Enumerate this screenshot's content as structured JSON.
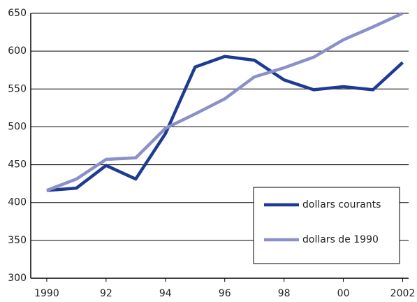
{
  "chart_data": {
    "type": "line",
    "x": [
      1990,
      1991,
      1992,
      1993,
      1994,
      1995,
      1996,
      1997,
      1998,
      1999,
      2000,
      2001,
      2002
    ],
    "series": [
      {
        "name": "dollars courants",
        "color": "#1f3a93",
        "values": [
          416,
          419,
          449,
          431,
          491,
          579,
          593,
          588,
          562,
          549,
          553,
          549,
          585
        ]
      },
      {
        "name": "dollars de 1990",
        "color": "#8c90c9",
        "values": [
          416,
          431,
          457,
          459,
          498,
          517,
          537,
          566,
          578,
          592,
          615,
          632,
          650
        ]
      }
    ],
    "xlim": [
      1989.46,
      2002.2
    ],
    "xticks": [
      1990,
      {
        "value": 1992,
        "label": "92"
      },
      {
        "value": 1994,
        "label": "94"
      },
      {
        "value": 1996,
        "label": "96"
      },
      {
        "value": 1998,
        "label": "98"
      },
      {
        "value": 2000,
        "label": "00"
      },
      2002
    ],
    "ylim": [
      300,
      650
    ],
    "yticks": [
      300,
      350,
      400,
      450,
      500,
      550,
      600,
      650
    ],
    "grid": true
  }
}
